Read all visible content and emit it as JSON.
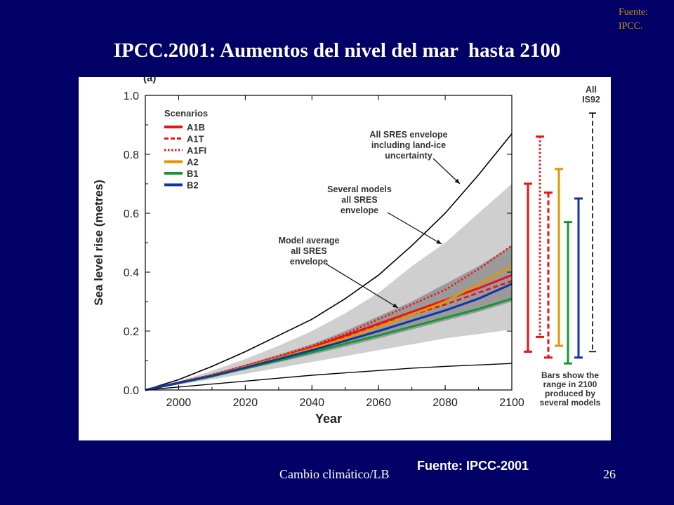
{
  "slide": {
    "title": "IPCC.2001: Aumentos del nivel del mar  hasta 2100",
    "source_top": "Fuente: IPCC.",
    "footer_left": "Cambio climático/LB",
    "footer_source": "Fuente: IPCC-2001",
    "page_number": "26"
  },
  "chart_data": {
    "type": "line",
    "title": "",
    "xlabel": "Year",
    "ylabel": "Sea level rise (metres)",
    "xlim": [
      1990,
      2100
    ],
    "ylim": [
      0,
      1.0
    ],
    "x_ticks": [
      2000,
      2020,
      2040,
      2060,
      2080,
      2100
    ],
    "y_ticks": [
      0.0,
      0.2,
      0.4,
      0.6,
      0.8,
      1.0
    ],
    "x_tick_labels": [
      "2000",
      "2020",
      "2040",
      "2060",
      "2080",
      "2100"
    ],
    "y_tick_labels": [
      "0.0",
      "0.2",
      "0.4",
      "0.6",
      "0.8",
      "1.0"
    ],
    "legend_title": "Scenarios",
    "legend_position": "top-left",
    "x": [
      1990,
      2000,
      2010,
      2020,
      2030,
      2040,
      2050,
      2060,
      2070,
      2080,
      2090,
      2100
    ],
    "series": [
      {
        "name": "A1B",
        "color": "#ee1111",
        "dash": "solid",
        "values": [
          0,
          0.025,
          0.05,
          0.08,
          0.11,
          0.145,
          0.185,
          0.225,
          0.265,
          0.305,
          0.345,
          0.39
        ]
      },
      {
        "name": "A1T",
        "color": "#ee1111",
        "dash": "dashed",
        "values": [
          0,
          0.025,
          0.05,
          0.08,
          0.11,
          0.145,
          0.18,
          0.22,
          0.255,
          0.29,
          0.33,
          0.37
        ]
      },
      {
        "name": "A1FI",
        "color": "#ee1111",
        "dash": "dotted",
        "values": [
          0,
          0.026,
          0.052,
          0.083,
          0.115,
          0.15,
          0.19,
          0.24,
          0.29,
          0.34,
          0.41,
          0.49
        ]
      },
      {
        "name": "A2",
        "color": "#dd9900",
        "dash": "solid",
        "values": [
          0,
          0.024,
          0.049,
          0.078,
          0.108,
          0.14,
          0.175,
          0.215,
          0.255,
          0.3,
          0.36,
          0.42
        ]
      },
      {
        "name": "B1",
        "color": "#119933",
        "dash": "solid",
        "values": [
          0,
          0.023,
          0.046,
          0.073,
          0.1,
          0.128,
          0.157,
          0.185,
          0.215,
          0.245,
          0.275,
          0.31
        ]
      },
      {
        "name": "B2",
        "color": "#1133aa",
        "dash": "solid",
        "values": [
          0,
          0.024,
          0.048,
          0.076,
          0.105,
          0.135,
          0.167,
          0.2,
          0.235,
          0.27,
          0.31,
          0.36
        ]
      }
    ],
    "envelopes": {
      "all_sres_upper": [
        0,
        0.035,
        0.08,
        0.13,
        0.185,
        0.24,
        0.31,
        0.39,
        0.49,
        0.6,
        0.73,
        0.87
      ],
      "all_sres_lower": [
        0,
        0.01,
        0.02,
        0.03,
        0.04,
        0.05,
        0.058,
        0.066,
        0.074,
        0.08,
        0.085,
        0.09
      ],
      "several_models_upper": [
        0,
        0.03,
        0.065,
        0.105,
        0.15,
        0.2,
        0.26,
        0.33,
        0.42,
        0.5,
        0.6,
        0.7
      ],
      "several_models_lower": [
        0,
        0.018,
        0.036,
        0.055,
        0.075,
        0.095,
        0.115,
        0.135,
        0.155,
        0.175,
        0.19,
        0.205
      ],
      "model_average_upper": [
        0,
        0.026,
        0.054,
        0.086,
        0.12,
        0.155,
        0.2,
        0.25,
        0.3,
        0.36,
        0.42,
        0.49
      ],
      "model_average_lower": [
        0,
        0.022,
        0.044,
        0.069,
        0.094,
        0.12,
        0.147,
        0.175,
        0.205,
        0.235,
        0.265,
        0.3
      ]
    },
    "range_bars_2100": [
      {
        "name": "A1B",
        "color": "#ee1111",
        "dash": "solid",
        "low": 0.13,
        "high": 0.7
      },
      {
        "name": "A1FI",
        "color": "#ee1111",
        "dash": "dotted",
        "low": 0.18,
        "high": 0.86
      },
      {
        "name": "A1T",
        "color": "#ee1111",
        "dash": "dashed",
        "low": 0.11,
        "high": 0.67
      },
      {
        "name": "A2",
        "color": "#dd9900",
        "dash": "solid",
        "low": 0.15,
        "high": 0.75
      },
      {
        "name": "B1",
        "color": "#119933",
        "dash": "solid",
        "low": 0.09,
        "high": 0.57
      },
      {
        "name": "B2",
        "color": "#1133aa",
        "dash": "solid",
        "low": 0.11,
        "high": 0.65
      },
      {
        "name": "All IS92",
        "color": "#000000",
        "dash": "dashed",
        "low": 0.13,
        "high": 0.94
      }
    ],
    "range_label_top": [
      "All",
      "IS92"
    ],
    "range_note": [
      "Bars show the",
      "range in 2100",
      "produced by",
      "several models"
    ],
    "annotations": [
      {
        "lines": [
          "All SRES envelope",
          "including land-ice",
          "uncertainty"
        ]
      },
      {
        "lines": [
          "Several models",
          "all SRES",
          "envelope"
        ]
      },
      {
        "lines": [
          "Model average",
          "all SRES",
          "envelope"
        ]
      }
    ],
    "corner_label": "(a)"
  }
}
